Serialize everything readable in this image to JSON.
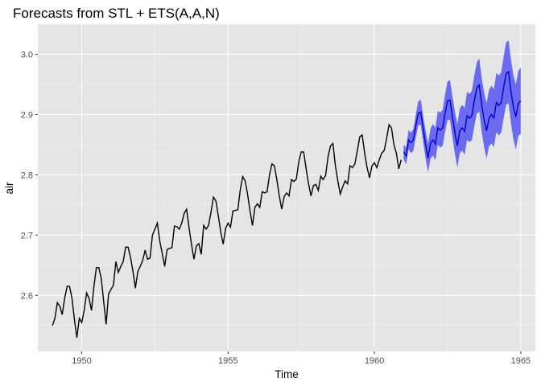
{
  "chart_data": {
    "type": "line",
    "title": "Forecasts from STL +  ETS(A,A,N)",
    "xlabel": "Time",
    "ylabel": "air",
    "xlim": [
      1948.5,
      1965.5
    ],
    "ylim": [
      2.507,
      3.05
    ],
    "x_ticks": [
      1950,
      1955,
      1960,
      1965
    ],
    "x_tick_labels": [
      "1950",
      "1955",
      "1960",
      "1965"
    ],
    "y_ticks": [
      2.6,
      2.7,
      2.8,
      2.9,
      3.0
    ],
    "y_tick_labels": [
      "2.6",
      "2.7",
      "2.8",
      "2.9",
      "3.0"
    ],
    "grid": true,
    "legend": "none",
    "colors": {
      "panel": "#e5e5e5",
      "grid": "#ffffff",
      "history_line": "#000000",
      "forecast_line": "#0000cc",
      "interval": "#6b6bf2"
    },
    "history": {
      "name": "",
      "start": 1949.0,
      "frequency": 12,
      "values": [
        2.55,
        2.562,
        2.588,
        2.582,
        2.568,
        2.595,
        2.615,
        2.615,
        2.595,
        2.56,
        2.53,
        2.562,
        2.555,
        2.575,
        2.604,
        2.595,
        2.575,
        2.615,
        2.646,
        2.646,
        2.628,
        2.59,
        2.552,
        2.602,
        2.61,
        2.617,
        2.656,
        2.638,
        2.648,
        2.656,
        2.68,
        2.68,
        2.663,
        2.64,
        2.612,
        2.64,
        2.648,
        2.658,
        2.675,
        2.66,
        2.662,
        2.7,
        2.71,
        2.72,
        2.69,
        2.67,
        2.648,
        2.676,
        2.678,
        2.679,
        2.715,
        2.714,
        2.71,
        2.72,
        2.736,
        2.743,
        2.712,
        2.685,
        2.66,
        2.682,
        2.686,
        2.668,
        2.716,
        2.71,
        2.716,
        2.738,
        2.763,
        2.757,
        2.732,
        2.705,
        2.685,
        2.711,
        2.72,
        2.713,
        2.74,
        2.741,
        2.742,
        2.775,
        2.797,
        2.79,
        2.768,
        2.74,
        2.716,
        2.746,
        2.752,
        2.746,
        2.772,
        2.77,
        2.772,
        2.8,
        2.818,
        2.815,
        2.792,
        2.765,
        2.743,
        2.764,
        2.77,
        2.765,
        2.792,
        2.789,
        2.793,
        2.822,
        2.838,
        2.838,
        2.81,
        2.785,
        2.765,
        2.782,
        2.784,
        2.774,
        2.798,
        2.792,
        2.799,
        2.83,
        2.848,
        2.852,
        2.815,
        2.79,
        2.768,
        2.78,
        2.79,
        2.785,
        2.815,
        2.812,
        2.818,
        2.84,
        2.863,
        2.866,
        2.836,
        2.812,
        2.795,
        2.815,
        2.82,
        2.812,
        2.825,
        2.836,
        2.84,
        2.86,
        2.883,
        2.878,
        2.85,
        2.836,
        2.81,
        2.825
      ]
    },
    "forecast": {
      "name": "",
      "start": 1961.0,
      "frequency": 12,
      "mean": [
        2.838,
        2.831,
        2.858,
        2.853,
        2.858,
        2.882,
        2.902,
        2.904,
        2.876,
        2.85,
        2.828,
        2.852,
        2.858,
        2.851,
        2.878,
        2.874,
        2.878,
        2.903,
        2.923,
        2.924,
        2.896,
        2.87,
        2.848,
        2.873,
        2.878,
        2.872,
        2.898,
        2.894,
        2.899,
        2.924,
        2.944,
        2.949,
        2.916,
        2.891,
        2.873,
        2.894,
        2.9,
        2.894,
        2.92,
        2.915,
        2.92,
        2.945,
        2.968,
        2.971,
        2.938,
        2.912,
        2.896,
        2.918,
        2.923
      ],
      "interval_width": [
        0.012,
        0.014,
        0.016,
        0.017,
        0.018,
        0.019,
        0.02,
        0.021,
        0.022,
        0.023,
        0.024,
        0.025,
        0.026,
        0.027,
        0.028,
        0.029,
        0.03,
        0.031,
        0.032,
        0.033,
        0.034,
        0.035,
        0.036,
        0.037,
        0.038,
        0.039,
        0.04,
        0.04,
        0.041,
        0.042,
        0.043,
        0.044,
        0.045,
        0.045,
        0.046,
        0.047,
        0.048,
        0.048,
        0.049,
        0.05,
        0.05,
        0.051,
        0.052,
        0.052,
        0.053,
        0.053,
        0.054,
        0.054,
        0.055
      ]
    }
  }
}
